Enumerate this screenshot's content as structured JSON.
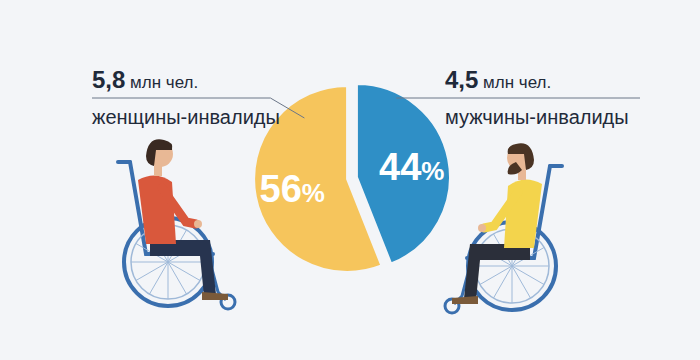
{
  "chart_data": {
    "type": "pie",
    "categories": [
      "женщины-инвалиды",
      "мужчины-инвалиды"
    ],
    "values": [
      56,
      44
    ],
    "value_labels": [
      "56%",
      "44%"
    ],
    "data_labels": true,
    "colors": [
      "#f6c55c",
      "#2f8fc6"
    ],
    "counts": [
      5.8,
      4.5
    ],
    "count_labels": [
      "5,8 млн чел.",
      "4,5 млн чел."
    ]
  }
}
